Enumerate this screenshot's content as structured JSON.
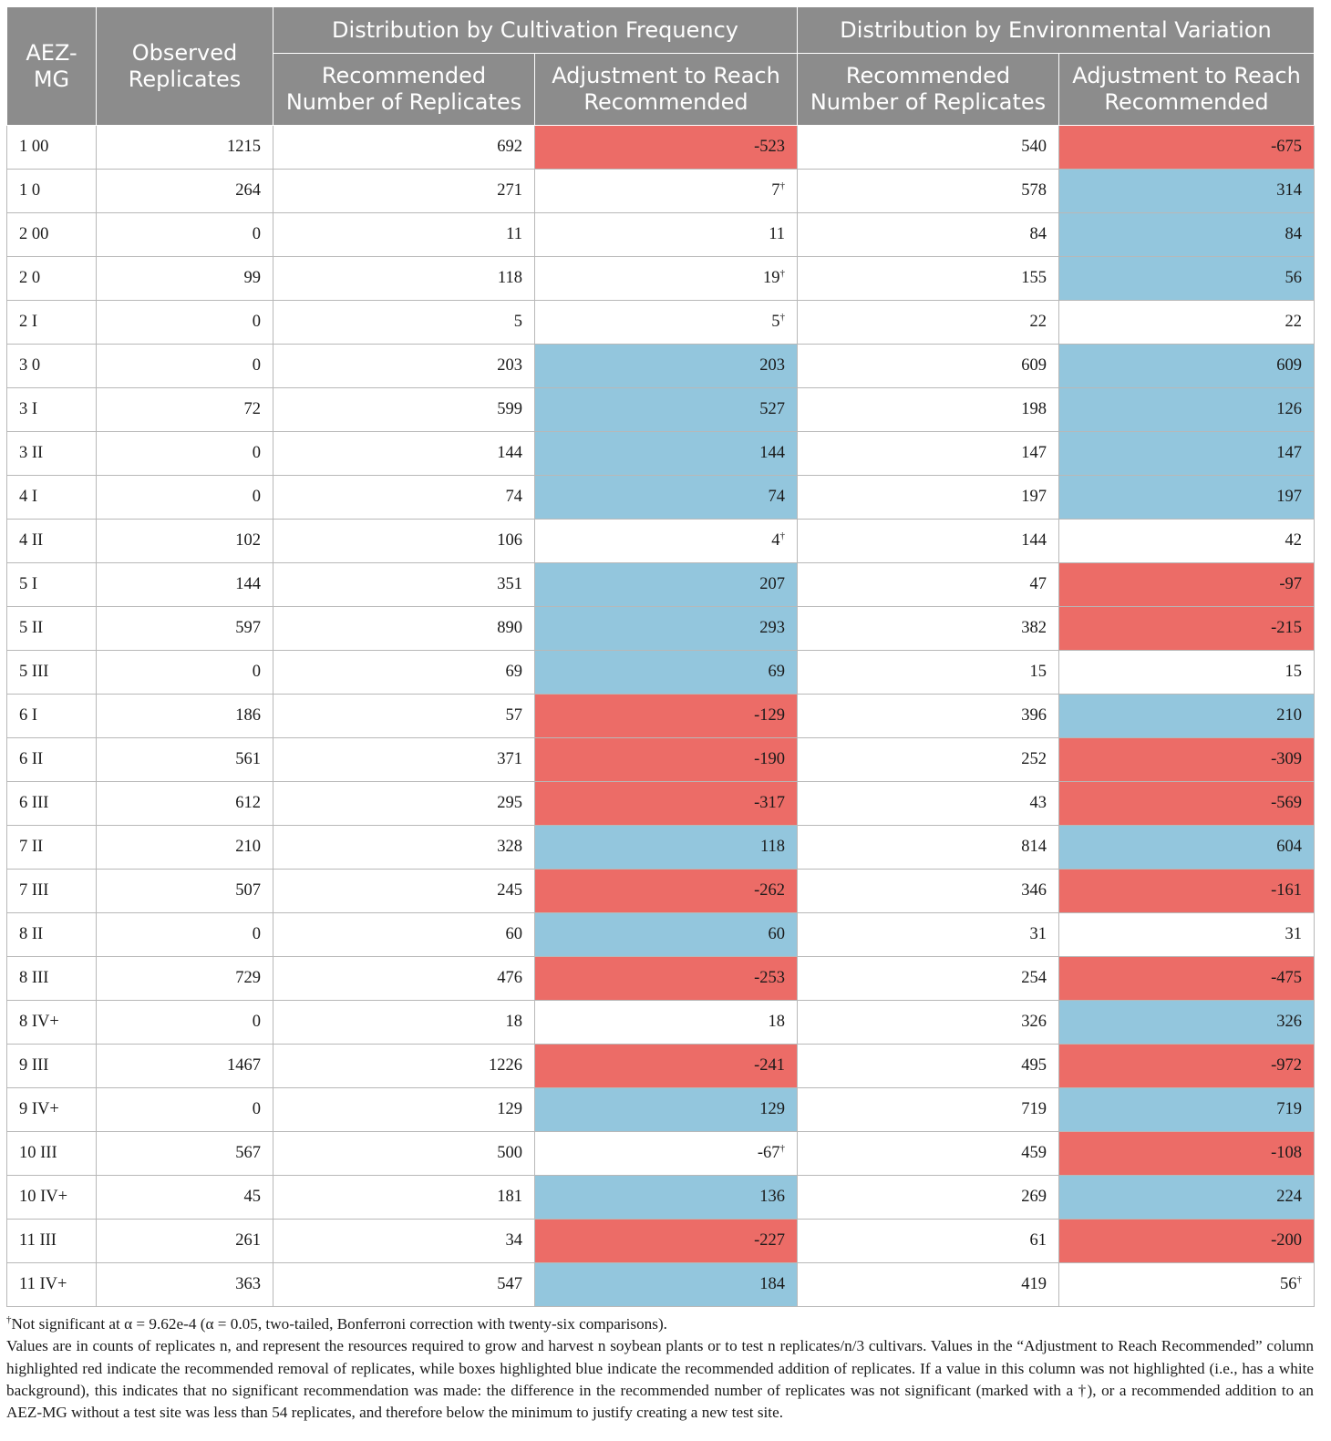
{
  "header": {
    "aez_mg": "AEZ-MG",
    "observed": "Observed Replicates",
    "group_cultivation": "Distribution by Cultivation Frequency",
    "group_environment": "Distribution by Environmental Variation",
    "recommended": "Recommended Number of Replicates",
    "adjustment": "Adjustment to Reach Recommended"
  },
  "colors": {
    "red": "#ec6c67",
    "blue": "#93c6dd",
    "white": "#ffffff",
    "header": "#8c8c8c"
  },
  "rows": [
    {
      "aez": "1 00",
      "obs": "1215",
      "cf_rec": "692",
      "cf_adj": "-523",
      "cf_color": "red",
      "cf_dagger": false,
      "ev_rec": "540",
      "ev_adj": "-675",
      "ev_color": "red",
      "ev_dagger": false
    },
    {
      "aez": "1 0",
      "obs": "264",
      "cf_rec": "271",
      "cf_adj": "7",
      "cf_color": "white",
      "cf_dagger": true,
      "ev_rec": "578",
      "ev_adj": "314",
      "ev_color": "blue",
      "ev_dagger": false
    },
    {
      "aez": "2 00",
      "obs": "0",
      "cf_rec": "11",
      "cf_adj": "11",
      "cf_color": "white",
      "cf_dagger": false,
      "ev_rec": "84",
      "ev_adj": "84",
      "ev_color": "blue",
      "ev_dagger": false
    },
    {
      "aez": "2 0",
      "obs": "99",
      "cf_rec": "118",
      "cf_adj": "19",
      "cf_color": "white",
      "cf_dagger": true,
      "ev_rec": "155",
      "ev_adj": "56",
      "ev_color": "blue",
      "ev_dagger": false
    },
    {
      "aez": "2 I",
      "obs": "0",
      "cf_rec": "5",
      "cf_adj": "5",
      "cf_color": "white",
      "cf_dagger": true,
      "ev_rec": "22",
      "ev_adj": "22",
      "ev_color": "white",
      "ev_dagger": false
    },
    {
      "aez": "3 0",
      "obs": "0",
      "cf_rec": "203",
      "cf_adj": "203",
      "cf_color": "blue",
      "cf_dagger": false,
      "ev_rec": "609",
      "ev_adj": "609",
      "ev_color": "blue",
      "ev_dagger": false
    },
    {
      "aez": "3 I",
      "obs": "72",
      "cf_rec": "599",
      "cf_adj": "527",
      "cf_color": "blue",
      "cf_dagger": false,
      "ev_rec": "198",
      "ev_adj": "126",
      "ev_color": "blue",
      "ev_dagger": false
    },
    {
      "aez": "3 II",
      "obs": "0",
      "cf_rec": "144",
      "cf_adj": "144",
      "cf_color": "blue",
      "cf_dagger": false,
      "ev_rec": "147",
      "ev_adj": "147",
      "ev_color": "blue",
      "ev_dagger": false
    },
    {
      "aez": "4 I",
      "obs": "0",
      "cf_rec": "74",
      "cf_adj": "74",
      "cf_color": "blue",
      "cf_dagger": false,
      "ev_rec": "197",
      "ev_adj": "197",
      "ev_color": "blue",
      "ev_dagger": false
    },
    {
      "aez": "4 II",
      "obs": "102",
      "cf_rec": "106",
      "cf_adj": "4",
      "cf_color": "white",
      "cf_dagger": true,
      "ev_rec": "144",
      "ev_adj": "42",
      "ev_color": "white",
      "ev_dagger": false
    },
    {
      "aez": "5 I",
      "obs": "144",
      "cf_rec": "351",
      "cf_adj": "207",
      "cf_color": "blue",
      "cf_dagger": false,
      "ev_rec": "47",
      "ev_adj": "-97",
      "ev_color": "red",
      "ev_dagger": false
    },
    {
      "aez": "5 II",
      "obs": "597",
      "cf_rec": "890",
      "cf_adj": "293",
      "cf_color": "blue",
      "cf_dagger": false,
      "ev_rec": "382",
      "ev_adj": "-215",
      "ev_color": "red",
      "ev_dagger": false
    },
    {
      "aez": "5 III",
      "obs": "0",
      "cf_rec": "69",
      "cf_adj": "69",
      "cf_color": "blue",
      "cf_dagger": false,
      "ev_rec": "15",
      "ev_adj": "15",
      "ev_color": "white",
      "ev_dagger": false
    },
    {
      "aez": "6 I",
      "obs": "186",
      "cf_rec": "57",
      "cf_adj": "-129",
      "cf_color": "red",
      "cf_dagger": false,
      "ev_rec": "396",
      "ev_adj": "210",
      "ev_color": "blue",
      "ev_dagger": false
    },
    {
      "aez": "6 II",
      "obs": "561",
      "cf_rec": "371",
      "cf_adj": "-190",
      "cf_color": "red",
      "cf_dagger": false,
      "ev_rec": "252",
      "ev_adj": "-309",
      "ev_color": "red",
      "ev_dagger": false
    },
    {
      "aez": "6 III",
      "obs": "612",
      "cf_rec": "295",
      "cf_adj": "-317",
      "cf_color": "red",
      "cf_dagger": false,
      "ev_rec": "43",
      "ev_adj": "-569",
      "ev_color": "red",
      "ev_dagger": false
    },
    {
      "aez": "7 II",
      "obs": "210",
      "cf_rec": "328",
      "cf_adj": "118",
      "cf_color": "blue",
      "cf_dagger": false,
      "ev_rec": "814",
      "ev_adj": "604",
      "ev_color": "blue",
      "ev_dagger": false
    },
    {
      "aez": "7 III",
      "obs": "507",
      "cf_rec": "245",
      "cf_adj": "-262",
      "cf_color": "red",
      "cf_dagger": false,
      "ev_rec": "346",
      "ev_adj": "-161",
      "ev_color": "red",
      "ev_dagger": false
    },
    {
      "aez": "8 II",
      "obs": "0",
      "cf_rec": "60",
      "cf_adj": "60",
      "cf_color": "blue",
      "cf_dagger": false,
      "ev_rec": "31",
      "ev_adj": "31",
      "ev_color": "white",
      "ev_dagger": false
    },
    {
      "aez": "8 III",
      "obs": "729",
      "cf_rec": "476",
      "cf_adj": "-253",
      "cf_color": "red",
      "cf_dagger": false,
      "ev_rec": "254",
      "ev_adj": "-475",
      "ev_color": "red",
      "ev_dagger": false
    },
    {
      "aez": "8 IV+",
      "obs": "0",
      "cf_rec": "18",
      "cf_adj": "18",
      "cf_color": "white",
      "cf_dagger": false,
      "ev_rec": "326",
      "ev_adj": "326",
      "ev_color": "blue",
      "ev_dagger": false
    },
    {
      "aez": "9 III",
      "obs": "1467",
      "cf_rec": "1226",
      "cf_adj": "-241",
      "cf_color": "red",
      "cf_dagger": false,
      "ev_rec": "495",
      "ev_adj": "-972",
      "ev_color": "red",
      "ev_dagger": false
    },
    {
      "aez": "9 IV+",
      "obs": "0",
      "cf_rec": "129",
      "cf_adj": "129",
      "cf_color": "blue",
      "cf_dagger": false,
      "ev_rec": "719",
      "ev_adj": "719",
      "ev_color": "blue",
      "ev_dagger": false
    },
    {
      "aez": "10 III",
      "obs": "567",
      "cf_rec": "500",
      "cf_adj": "-67",
      "cf_color": "white",
      "cf_dagger": true,
      "ev_rec": "459",
      "ev_adj": "-108",
      "ev_color": "red",
      "ev_dagger": false
    },
    {
      "aez": "10 IV+",
      "obs": "45",
      "cf_rec": "181",
      "cf_adj": "136",
      "cf_color": "blue",
      "cf_dagger": false,
      "ev_rec": "269",
      "ev_adj": "224",
      "ev_color": "blue",
      "ev_dagger": false
    },
    {
      "aez": "11 III",
      "obs": "261",
      "cf_rec": "34",
      "cf_adj": "-227",
      "cf_color": "red",
      "cf_dagger": false,
      "ev_rec": "61",
      "ev_adj": "-200",
      "ev_color": "red",
      "ev_dagger": false
    },
    {
      "aez": "11 IV+",
      "obs": "363",
      "cf_rec": "547",
      "cf_adj": "184",
      "cf_color": "blue",
      "cf_dagger": false,
      "ev_rec": "419",
      "ev_adj": "56",
      "ev_color": "white",
      "ev_dagger": true
    }
  ],
  "footnotes": {
    "dagger_symbol": "†",
    "dagger_note": "Not significant at α = 9.62e-4 (α = 0.05, two-tailed, Bonferroni correction with twenty-six comparisons).",
    "explanation": "Values are in counts of replicates n, and represent the resources required to grow and harvest n soybean plants or to test n replicates/n/3 cultivars. Values in the “Adjustment to Reach Recommended” column highlighted red indicate the recommended removal of replicates, while boxes highlighted blue indicate the recommended addition of replicates. If a value in this column was not highlighted (i.e., has a white background), this indicates that no significant recommendation was made: the difference in the recommended number of replicates was not significant (marked with a †), or a recommended addition to an AEZ-MG without a test site was less than 54 replicates, and therefore below the minimum to justify creating a new test site."
  }
}
